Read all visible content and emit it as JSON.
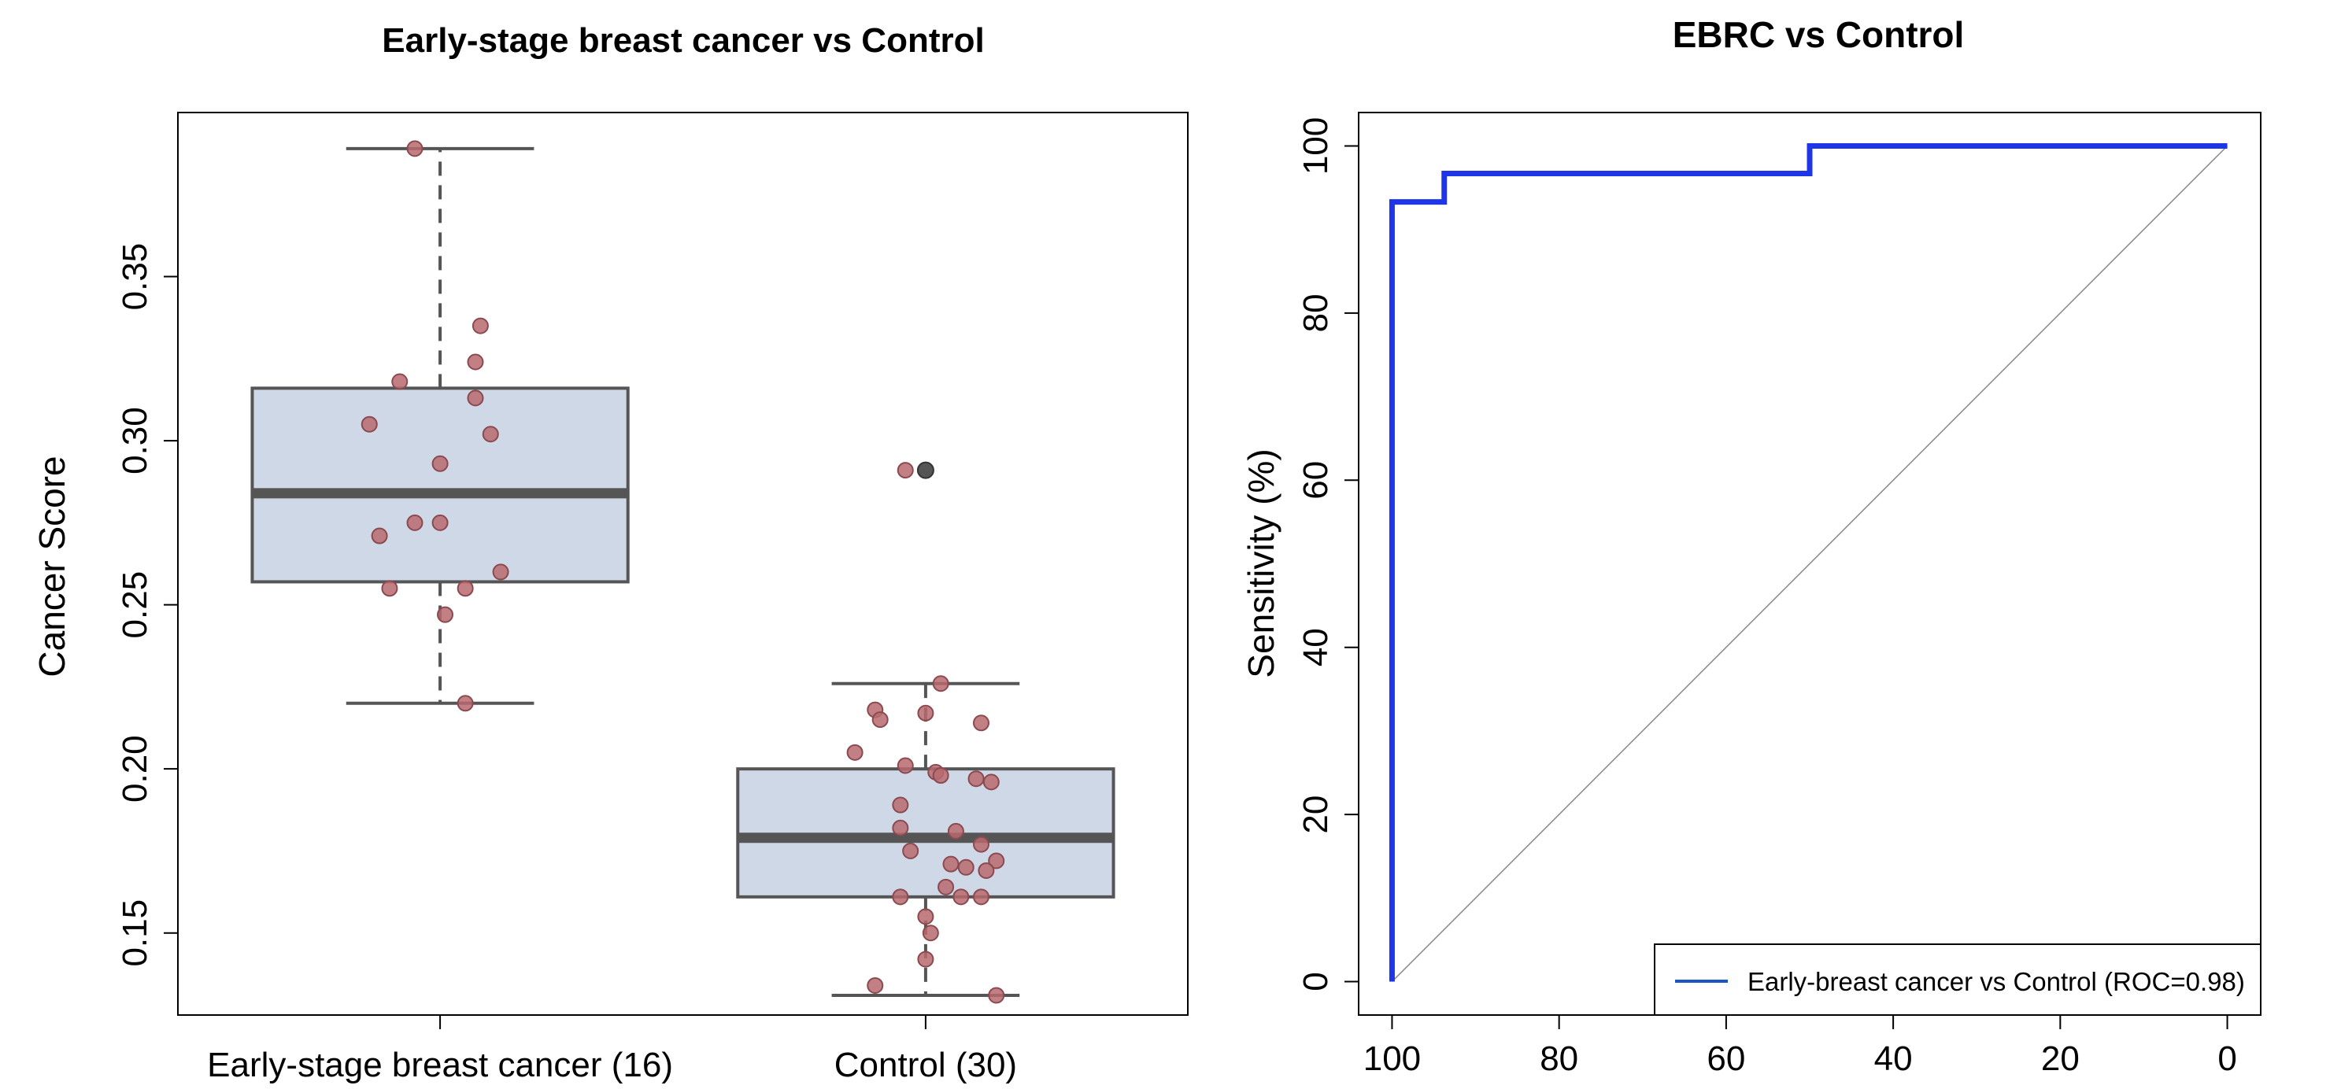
{
  "colors": {
    "box_fill": "#cfd8e6",
    "box_stroke": "#555555",
    "median": "#555555",
    "point_fill": "#b86a6e",
    "point_stroke": "#8a4a50",
    "outlier": "#555555",
    "roc_line": "#1f36e8",
    "legend_line": "#1a56c4",
    "diagonal": "#888888"
  },
  "chart_data": [
    {
      "type": "box",
      "title": "Early-stage breast cancer vs Control",
      "ylabel": "Cancer Score",
      "xlabel": "",
      "ylim": [
        0.125,
        0.4
      ],
      "yticks": [
        "0.15",
        "0.20",
        "0.25",
        "0.30",
        "0.35"
      ],
      "ytick_values": [
        0.15,
        0.2,
        0.25,
        0.3,
        0.35
      ],
      "groups": [
        {
          "label": "Early-stage breast cancer (16)",
          "n": 16,
          "whisker_low": 0.22,
          "q1": 0.257,
          "median": 0.284,
          "q3": 0.316,
          "whisker_high": 0.389,
          "outliers": [],
          "points": [
            0.389,
            0.335,
            0.324,
            0.318,
            0.313,
            0.305,
            0.302,
            0.293,
            0.275,
            0.275,
            0.271,
            0.26,
            0.255,
            0.255,
            0.247,
            0.22
          ],
          "jitter": [
            -0.05,
            0.08,
            0.07,
            -0.08,
            0.07,
            -0.14,
            0.1,
            0.0,
            -0.05,
            0.0,
            -0.12,
            0.12,
            0.05,
            -0.1,
            0.01,
            0.05
          ]
        },
        {
          "label": "Control (30)",
          "n": 30,
          "whisker_low": 0.131,
          "q1": 0.161,
          "median": 0.179,
          "q3": 0.2,
          "whisker_high": 0.226,
          "outliers": [
            0.291
          ],
          "points": [
            0.291,
            0.226,
            0.218,
            0.217,
            0.215,
            0.214,
            0.205,
            0.201,
            0.199,
            0.198,
            0.197,
            0.196,
            0.189,
            0.182,
            0.181,
            0.177,
            0.175,
            0.172,
            0.171,
            0.17,
            0.169,
            0.164,
            0.161,
            0.161,
            0.161,
            0.155,
            0.15,
            0.142,
            0.134,
            0.131
          ],
          "jitter": [
            -0.04,
            0.03,
            -0.1,
            0.0,
            -0.09,
            0.11,
            -0.14,
            -0.04,
            0.02,
            0.03,
            0.1,
            0.13,
            -0.05,
            -0.05,
            0.06,
            0.11,
            -0.03,
            0.14,
            0.05,
            0.08,
            0.12,
            0.04,
            -0.05,
            0.07,
            0.11,
            0.0,
            0.01,
            0.0,
            -0.1,
            0.14
          ]
        }
      ]
    },
    {
      "type": "line",
      "title": "EBRC vs Control",
      "ylabel": "Sensitivity (%)",
      "xlabel": "",
      "xlim": [
        104,
        -4
      ],
      "ylim": [
        -4,
        104
      ],
      "xticks": [
        "100",
        "80",
        "60",
        "40",
        "20",
        "0"
      ],
      "xtick_values": [
        100,
        80,
        60,
        40,
        20,
        0
      ],
      "yticks": [
        "0",
        "20",
        "40",
        "60",
        "80",
        "100"
      ],
      "ytick_values": [
        0,
        20,
        40,
        60,
        80,
        100
      ],
      "series": [
        {
          "name": "Early-breast cancer vs Control (ROC=0.98)",
          "x": [
            100,
            100,
            93.75,
            93.75,
            50,
            50,
            0
          ],
          "y": [
            0,
            93.3,
            93.3,
            96.7,
            96.7,
            100,
            100
          ]
        }
      ],
      "diagonal": {
        "x": [
          100,
          0
        ],
        "y": [
          0,
          100
        ]
      },
      "legend": {
        "position": "bottom-right",
        "entries": [
          "Early-breast cancer vs Control (ROC=0.98)"
        ]
      }
    }
  ]
}
